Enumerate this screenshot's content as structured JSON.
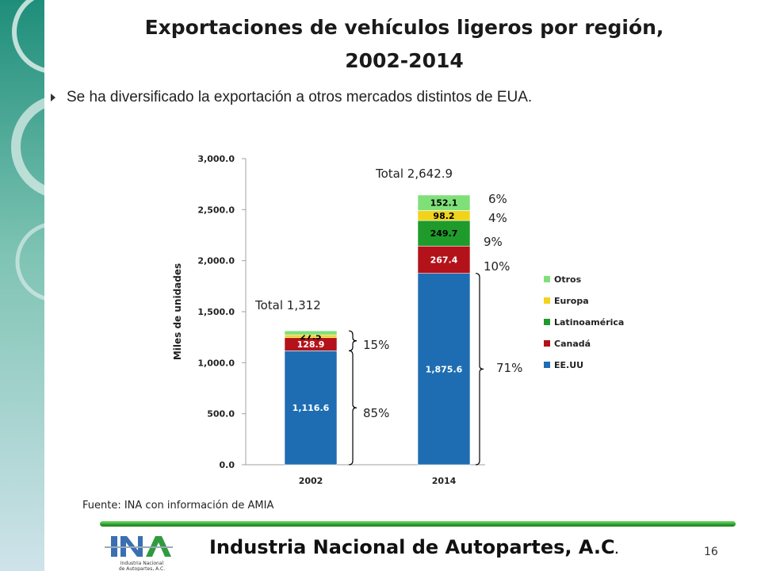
{
  "slide": {
    "title_line1": "Exportaciones de vehículos ligeros por región,",
    "title_line2": "2002-2014",
    "bullet": "Se ha diversificado la exportación a otros mercados distintos de EUA.",
    "source": "Fuente: INA con información de AMIA",
    "organization": "Industria Nacional de  Autopartes, A.C",
    "org_suffix": ".",
    "page_number": "16",
    "logo_text": "Industria Nacional de Autopartes, A.C."
  },
  "chart_data": {
    "type": "bar",
    "stacked": true,
    "categories": [
      "2002",
      "2014"
    ],
    "ylabel": "Miles de unidades",
    "ylim": [
      0,
      3000
    ],
    "yticks": [
      "0.0",
      "500.0",
      "1,000.0",
      "1,500.0",
      "2,000.0",
      "2,500.0",
      "3,000.0"
    ],
    "ytick_values": [
      0,
      500,
      1000,
      1500,
      2000,
      2500,
      3000
    ],
    "legend_position": "right",
    "series": [
      {
        "name": "EE.UU",
        "color": "#1e6db3",
        "values": [
          1116.6,
          1875.6
        ],
        "labels": [
          "1,116.6",
          "1,875.6"
        ]
      },
      {
        "name": "Canadá",
        "color": "#b3121b",
        "values": [
          128.9,
          267.4
        ],
        "labels": [
          "128.9",
          "267.4"
        ]
      },
      {
        "name": "Latinoamérica",
        "color": "#1f9b2b",
        "values": [
          0,
          249.7
        ],
        "labels": [
          "",
          "249.7"
        ]
      },
      {
        "name": "Europa",
        "color": "#f2d31b",
        "values": [
          27.5,
          98.2
        ],
        "labels": [
          "27.5",
          "98.2"
        ]
      },
      {
        "name": "Otros",
        "color": "#7fe07a",
        "values": [
          39.0,
          152.1
        ],
        "labels": [
          "",
          "152.1"
        ]
      }
    ],
    "totals": [
      "Total 1,312",
      "Total 2,642.9"
    ],
    "annotations_2002": [
      "15%",
      "85%"
    ],
    "annotations_2014": [
      "6%",
      "4%",
      "9%",
      "10%",
      "71%"
    ]
  }
}
